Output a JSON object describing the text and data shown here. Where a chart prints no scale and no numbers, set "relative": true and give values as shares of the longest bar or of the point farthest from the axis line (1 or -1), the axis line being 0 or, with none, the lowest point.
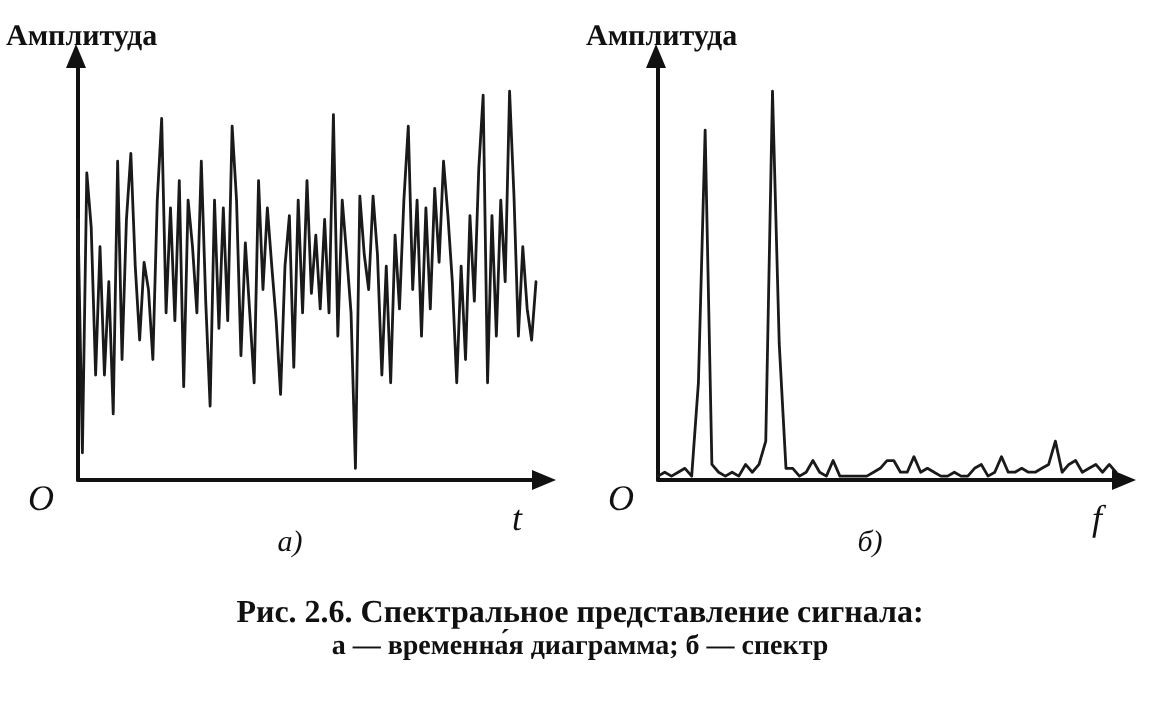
{
  "chart_data": [
    {
      "type": "line",
      "title": "а)",
      "ylabel": "Амплитуда",
      "xlabel": "t",
      "annotations": [
        "O"
      ],
      "relative": true,
      "marker": "none",
      "line_style": "solid",
      "grid": false,
      "categories": [
        null,
        null,
        null,
        null,
        null,
        null,
        null,
        null,
        null,
        null,
        null,
        null,
        null,
        null,
        null,
        null,
        null,
        null,
        null,
        null,
        null,
        null,
        null,
        null,
        null,
        null,
        null,
        null,
        null,
        null,
        null,
        null,
        null,
        null,
        null,
        null,
        null,
        null,
        null,
        null,
        null,
        null,
        null,
        null,
        null,
        null,
        null,
        null,
        null,
        null,
        null,
        null,
        null,
        null,
        null,
        null,
        null,
        null,
        null,
        null,
        null,
        null,
        null,
        null,
        null,
        null,
        null,
        null,
        null,
        null,
        null,
        null,
        null,
        null,
        null,
        null,
        null,
        null,
        null,
        null,
        null,
        null,
        null,
        null,
        null,
        null,
        null,
        null,
        null,
        null,
        null,
        null,
        null,
        null,
        null,
        null,
        null,
        null,
        null,
        null,
        null,
        null,
        null,
        null,
        null
      ],
      "series": [
        {
          "color": "#1a1a1a",
          "values": [
            0.67,
            0.07,
            0.79,
            0.65,
            0.27,
            0.6,
            0.27,
            0.51,
            0.17,
            0.82,
            0.31,
            0.67,
            0.84,
            0.55,
            0.36,
            0.56,
            0.49,
            0.31,
            0.72,
            0.93,
            0.43,
            0.7,
            0.41,
            0.77,
            0.24,
            0.72,
            0.6,
            0.43,
            0.82,
            0.46,
            0.19,
            0.72,
            0.39,
            0.7,
            0.41,
            0.91,
            0.72,
            0.32,
            0.61,
            0.43,
            0.25,
            0.77,
            0.49,
            0.7,
            0.55,
            0.41,
            0.22,
            0.55,
            0.68,
            0.29,
            0.72,
            0.43,
            0.77,
            0.48,
            0.63,
            0.44,
            0.67,
            0.43,
            0.94,
            0.37,
            0.72,
            0.58,
            0.43,
            0.03,
            0.73,
            0.58,
            0.49,
            0.73,
            0.58,
            0.27,
            0.55,
            0.25,
            0.63,
            0.44,
            0.72,
            0.91,
            0.49,
            0.72,
            0.37,
            0.7,
            0.44,
            0.75,
            0.56,
            0.82,
            0.68,
            0.51,
            0.25,
            0.55,
            0.31,
            0.68,
            0.46,
            0.8,
            0.99,
            0.25,
            0.68,
            0.37,
            0.72,
            0.51,
            1.0,
            0.73,
            0.37,
            0.6,
            0.44,
            0.36,
            0.51
          ]
        }
      ]
    },
    {
      "type": "line",
      "title": "б)",
      "ylabel": "Амплитуда",
      "xlabel": "f",
      "annotations": [
        "O"
      ],
      "relative": true,
      "marker": "none",
      "line_style": "solid",
      "grid": false,
      "categories": [
        null,
        null,
        null,
        null,
        null,
        null,
        null,
        null,
        null,
        null,
        null,
        null,
        null,
        null,
        null,
        null,
        null,
        null,
        null,
        null,
        null,
        null,
        null,
        null,
        null,
        null,
        null,
        null,
        null,
        null,
        null,
        null,
        null,
        null,
        null,
        null,
        null,
        null,
        null,
        null,
        null,
        null,
        null,
        null,
        null,
        null,
        null,
        null,
        null,
        null,
        null,
        null,
        null,
        null,
        null,
        null,
        null,
        null,
        null,
        null,
        null,
        null,
        null,
        null,
        null,
        null,
        null,
        null,
        null
      ],
      "series": [
        {
          "color": "#1a1a1a",
          "values": [
            0.01,
            0.02,
            0.01,
            0.02,
            0.03,
            0.01,
            0.25,
            0.9,
            0.04,
            0.02,
            0.01,
            0.02,
            0.01,
            0.04,
            0.02,
            0.04,
            0.1,
            1.0,
            0.35,
            0.03,
            0.03,
            0.01,
            0.02,
            0.05,
            0.02,
            0.01,
            0.05,
            0.01,
            0.01,
            0.01,
            0.01,
            0.01,
            0.02,
            0.03,
            0.05,
            0.05,
            0.02,
            0.02,
            0.06,
            0.02,
            0.03,
            0.02,
            0.01,
            0.01,
            0.02,
            0.01,
            0.01,
            0.03,
            0.04,
            0.01,
            0.02,
            0.06,
            0.02,
            0.02,
            0.03,
            0.02,
            0.02,
            0.03,
            0.04,
            0.1,
            0.02,
            0.04,
            0.05,
            0.02,
            0.03,
            0.04,
            0.02,
            0.04,
            0.02
          ]
        }
      ]
    },
    {
      "type": "other",
      "title": "Рис. 2.6. Спектральное представление сигнала:",
      "subtitle": "а — временна́я диаграмма; б — спектр"
    }
  ]
}
